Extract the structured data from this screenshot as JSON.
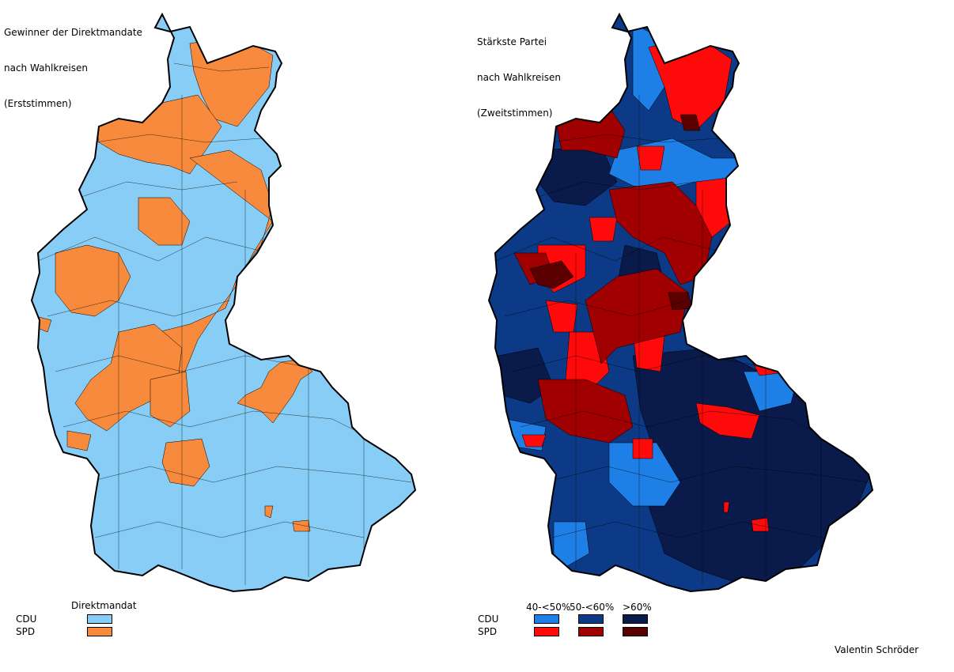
{
  "left_map": {
    "title_lines": [
      "Gewinner der Direktmandate",
      "nach Wahlkreisen",
      "(Erststimmen)"
    ],
    "legend": {
      "header": "Direktmandat",
      "rows": [
        {
          "party": "CDU",
          "color": "#87cdf5"
        },
        {
          "party": "SPD",
          "color": "#f78a3c"
        }
      ]
    }
  },
  "right_map": {
    "title_lines": [
      "Stärkste Partei",
      "nach Wahlkreisen",
      "(Zweitstimmen)"
    ],
    "legend": {
      "headers": [
        "40-<50%",
        "50-<60%",
        ">60%"
      ],
      "rows": [
        {
          "party": "CDU",
          "colors": [
            "#1e7fe6",
            "#0c3a87",
            "#0a1a4a"
          ]
        },
        {
          "party": "SPD",
          "colors": [
            "#ff0a0a",
            "#a00000",
            "#5a0000"
          ]
        }
      ]
    }
  },
  "credit": "Valentin Schröder"
}
